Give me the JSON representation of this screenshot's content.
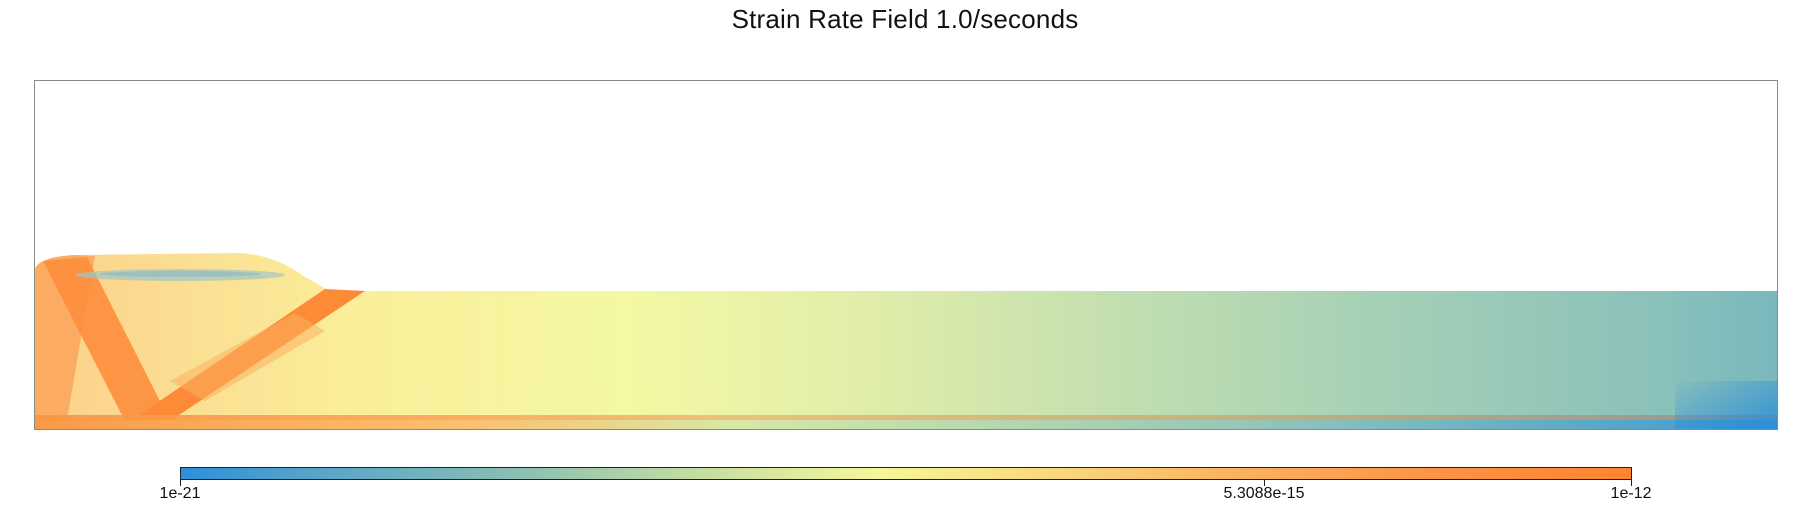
{
  "figure": {
    "title": "Strain Rate Field 1.0/seconds"
  },
  "colorbar": {
    "ticks": [
      "1e-21",
      "5.3088e-15",
      "1e-12"
    ],
    "colors": [
      "#2e8fd8",
      "#86bcb4",
      "#f5f69a",
      "#fbb462",
      "#fe8431"
    ]
  }
}
